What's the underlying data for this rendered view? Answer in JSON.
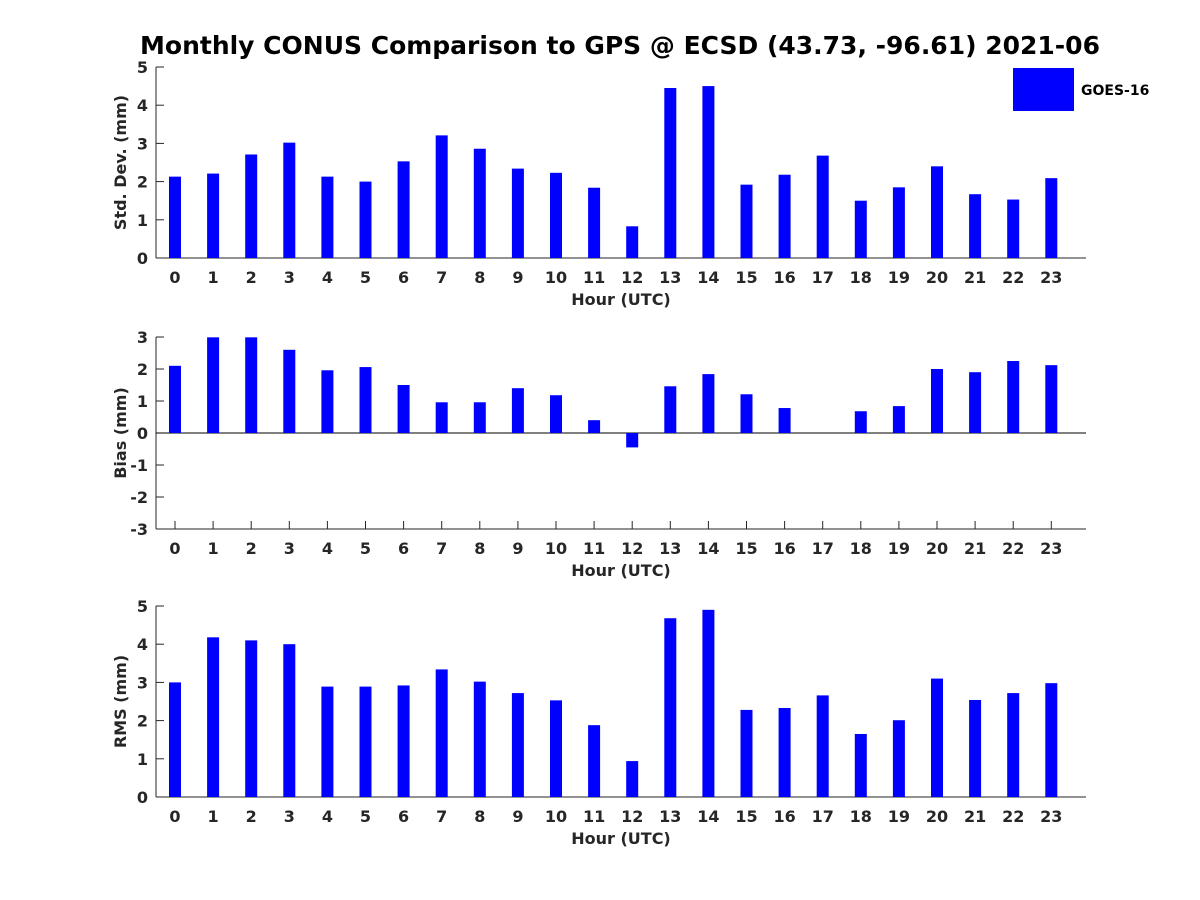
{
  "figure_title": "Monthly CONUS Comparison to GPS @ ECSD (43.73, -96.61) 2021-06",
  "legend": {
    "label": "GOES-16",
    "color": "#0000ff"
  },
  "chart_data": [
    {
      "type": "bar",
      "ylabel": "Std. Dev. (mm)",
      "xlabel": "Hour (UTC)",
      "ylim": [
        0,
        5
      ],
      "yticks": [
        "0",
        "1",
        "2",
        "3",
        "4",
        "5"
      ],
      "categories": [
        "0",
        "1",
        "2",
        "3",
        "4",
        "5",
        "6",
        "7",
        "8",
        "9",
        "10",
        "11",
        "12",
        "13",
        "14",
        "15",
        "16",
        "17",
        "18",
        "19",
        "20",
        "21",
        "22",
        "23"
      ],
      "series": [
        {
          "name": "GOES-16",
          "values": [
            2.13,
            2.21,
            2.71,
            3.02,
            2.13,
            2.0,
            2.53,
            3.21,
            2.86,
            2.34,
            2.23,
            1.84,
            0.83,
            4.45,
            4.5,
            1.92,
            2.18,
            2.68,
            1.5,
            1.85,
            2.4,
            1.67,
            1.53,
            2.09
          ]
        }
      ]
    },
    {
      "type": "bar",
      "ylabel": "Bias (mm)",
      "xlabel": "Hour (UTC)",
      "ylim": [
        -3,
        3
      ],
      "yticks": [
        "-3",
        "-2",
        "-1",
        "0",
        "1",
        "2",
        "3"
      ],
      "categories": [
        "0",
        "1",
        "2",
        "3",
        "4",
        "5",
        "6",
        "7",
        "8",
        "9",
        "10",
        "11",
        "12",
        "13",
        "14",
        "15",
        "16",
        "17",
        "18",
        "19",
        "20",
        "21",
        "22",
        "23"
      ],
      "series": [
        {
          "name": "GOES-16",
          "values": [
            2.1,
            2.99,
            2.99,
            2.6,
            1.96,
            2.06,
            1.5,
            0.96,
            0.96,
            1.4,
            1.18,
            0.4,
            -0.45,
            1.46,
            1.84,
            1.21,
            0.78,
            0.0,
            0.68,
            0.84,
            2.0,
            1.9,
            2.25,
            2.12
          ]
        }
      ]
    },
    {
      "type": "bar",
      "ylabel": "RMS (mm)",
      "xlabel": "Hour (UTC)",
      "ylim": [
        0,
        5
      ],
      "yticks": [
        "0",
        "1",
        "2",
        "3",
        "4",
        "5"
      ],
      "categories": [
        "0",
        "1",
        "2",
        "3",
        "4",
        "5",
        "6",
        "7",
        "8",
        "9",
        "10",
        "11",
        "12",
        "13",
        "14",
        "15",
        "16",
        "17",
        "18",
        "19",
        "20",
        "21",
        "22",
        "23"
      ],
      "series": [
        {
          "name": "GOES-16",
          "values": [
            3.0,
            4.18,
            4.1,
            4.0,
            2.89,
            2.89,
            2.92,
            3.34,
            3.02,
            2.72,
            2.53,
            1.88,
            0.94,
            4.68,
            4.9,
            2.28,
            2.33,
            2.66,
            1.65,
            2.01,
            3.1,
            2.54,
            2.72,
            2.98
          ]
        }
      ]
    }
  ]
}
